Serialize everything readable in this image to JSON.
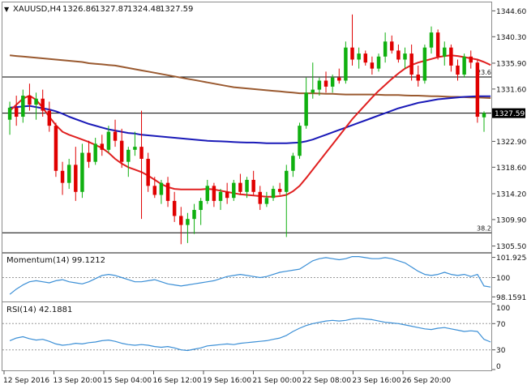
{
  "header": {
    "symbol": "XAUUSD,H4",
    "open": "1326.86",
    "high": "1327.87",
    "low": "1324.48",
    "close": "1327.59"
  },
  "colors": {
    "bull": "#10b010",
    "bear": "#e00000",
    "sma_fast": "#e02020",
    "sma_mid": "#1a1ab8",
    "sma_slow": "#9a5a30",
    "indicator": "#3b8fd6",
    "grid": "#9a9a9a",
    "text": "#111111",
    "price_tag_bg": "#000000",
    "price_tag_fg": "#ffffff"
  },
  "chart_data": [
    {
      "type": "candlestick",
      "title": "XAUUSD,H4",
      "x_labels": [
        "12 Sep 2016",
        "13 Sep 20:00",
        "15 Sep 04:00",
        "16 Sep 12:00",
        "19 Sep 16:00",
        "21 Sep 00:00",
        "22 Sep 08:00",
        "23 Sep 16:00",
        "26 Sep 20:00"
      ],
      "y_ticks": [
        "1344.60",
        "1340.30",
        "1335.90",
        "1331.60",
        "1327.59",
        "1322.90",
        "1318.60",
        "1314.20",
        "1309.90",
        "1305.50"
      ],
      "ylim": [
        1304.5,
        1346.0
      ],
      "current_price": 1327.59,
      "current_price_label": "1327.59",
      "fib_levels": [
        {
          "label": "23.6",
          "value": 1333.6
        },
        {
          "label": "38.2",
          "value": 1307.7
        }
      ],
      "candles": [
        {
          "o": 1326.5,
          "h": 1329.5,
          "l": 1324.0,
          "c": 1328.5
        },
        {
          "o": 1328.5,
          "h": 1330.5,
          "l": 1325.5,
          "c": 1327.0
        },
        {
          "o": 1327.0,
          "h": 1331.5,
          "l": 1326.0,
          "c": 1330.5
        },
        {
          "o": 1330.5,
          "h": 1332.5,
          "l": 1328.0,
          "c": 1329.0
        },
        {
          "o": 1329.0,
          "h": 1331.0,
          "l": 1326.5,
          "c": 1330.0
        },
        {
          "o": 1330.0,
          "h": 1331.5,
          "l": 1327.0,
          "c": 1328.0
        },
        {
          "o": 1328.0,
          "h": 1329.5,
          "l": 1324.5,
          "c": 1325.5
        },
        {
          "o": 1325.5,
          "h": 1326.0,
          "l": 1317.0,
          "c": 1318.0
        },
        {
          "o": 1318.0,
          "h": 1319.5,
          "l": 1314.0,
          "c": 1316.0
        },
        {
          "o": 1316.0,
          "h": 1320.0,
          "l": 1315.0,
          "c": 1319.0
        },
        {
          "o": 1319.0,
          "h": 1322.0,
          "l": 1313.0,
          "c": 1314.5
        },
        {
          "o": 1314.5,
          "h": 1322.5,
          "l": 1313.5,
          "c": 1321.0
        },
        {
          "o": 1321.0,
          "h": 1323.0,
          "l": 1318.5,
          "c": 1319.5
        },
        {
          "o": 1319.5,
          "h": 1323.5,
          "l": 1319.0,
          "c": 1322.5
        },
        {
          "o": 1322.5,
          "h": 1324.0,
          "l": 1320.5,
          "c": 1321.5
        },
        {
          "o": 1321.5,
          "h": 1325.5,
          "l": 1321.0,
          "c": 1324.5
        },
        {
          "o": 1324.5,
          "h": 1326.5,
          "l": 1322.0,
          "c": 1323.0
        },
        {
          "o": 1323.0,
          "h": 1325.0,
          "l": 1318.5,
          "c": 1319.5
        },
        {
          "o": 1319.5,
          "h": 1322.0,
          "l": 1317.0,
          "c": 1321.5
        },
        {
          "o": 1321.5,
          "h": 1324.5,
          "l": 1320.5,
          "c": 1322.0
        },
        {
          "o": 1322.0,
          "h": 1328.0,
          "l": 1310.0,
          "c": 1320.0
        },
        {
          "o": 1320.0,
          "h": 1321.0,
          "l": 1314.5,
          "c": 1315.5
        },
        {
          "o": 1315.5,
          "h": 1317.0,
          "l": 1313.5,
          "c": 1314.0
        },
        {
          "o": 1314.0,
          "h": 1316.5,
          "l": 1312.5,
          "c": 1316.0
        },
        {
          "o": 1316.0,
          "h": 1317.0,
          "l": 1312.0,
          "c": 1313.0
        },
        {
          "o": 1313.0,
          "h": 1314.5,
          "l": 1309.5,
          "c": 1310.5
        },
        {
          "o": 1310.5,
          "h": 1312.0,
          "l": 1305.8,
          "c": 1309.0
        },
        {
          "o": 1309.0,
          "h": 1311.0,
          "l": 1306.0,
          "c": 1310.0
        },
        {
          "o": 1310.0,
          "h": 1312.5,
          "l": 1307.5,
          "c": 1311.5
        },
        {
          "o": 1311.5,
          "h": 1313.5,
          "l": 1309.0,
          "c": 1313.0
        },
        {
          "o": 1313.0,
          "h": 1316.5,
          "l": 1312.5,
          "c": 1315.5
        },
        {
          "o": 1315.5,
          "h": 1316.0,
          "l": 1312.0,
          "c": 1313.0
        },
        {
          "o": 1313.0,
          "h": 1315.0,
          "l": 1311.5,
          "c": 1314.5
        },
        {
          "o": 1314.5,
          "h": 1316.0,
          "l": 1312.5,
          "c": 1313.5
        },
        {
          "o": 1313.5,
          "h": 1316.5,
          "l": 1313.0,
          "c": 1316.0
        },
        {
          "o": 1316.0,
          "h": 1317.5,
          "l": 1314.0,
          "c": 1314.5
        },
        {
          "o": 1314.5,
          "h": 1317.0,
          "l": 1313.5,
          "c": 1316.5
        },
        {
          "o": 1316.5,
          "h": 1318.0,
          "l": 1314.0,
          "c": 1314.5
        },
        {
          "o": 1314.5,
          "h": 1315.5,
          "l": 1311.5,
          "c": 1312.5
        },
        {
          "o": 1312.5,
          "h": 1314.5,
          "l": 1312.0,
          "c": 1313.5
        },
        {
          "o": 1313.5,
          "h": 1315.5,
          "l": 1313.0,
          "c": 1315.0
        },
        {
          "o": 1315.0,
          "h": 1316.0,
          "l": 1314.0,
          "c": 1314.5
        },
        {
          "o": 1314.5,
          "h": 1319.0,
          "l": 1307.0,
          "c": 1318.0
        },
        {
          "o": 1318.0,
          "h": 1321.0,
          "l": 1317.0,
          "c": 1320.5
        },
        {
          "o": 1320.5,
          "h": 1326.0,
          "l": 1320.0,
          "c": 1325.5
        },
        {
          "o": 1325.5,
          "h": 1333.5,
          "l": 1325.0,
          "c": 1331.0
        },
        {
          "o": 1331.0,
          "h": 1336.0,
          "l": 1330.0,
          "c": 1331.5
        },
        {
          "o": 1331.5,
          "h": 1333.5,
          "l": 1330.5,
          "c": 1333.0
        },
        {
          "o": 1333.0,
          "h": 1334.5,
          "l": 1331.0,
          "c": 1332.0
        },
        {
          "o": 1332.0,
          "h": 1334.0,
          "l": 1331.0,
          "c": 1333.5
        },
        {
          "o": 1333.5,
          "h": 1335.0,
          "l": 1332.5,
          "c": 1333.0
        },
        {
          "o": 1333.0,
          "h": 1339.5,
          "l": 1332.5,
          "c": 1338.5
        },
        {
          "o": 1338.5,
          "h": 1344.0,
          "l": 1335.5,
          "c": 1336.5
        },
        {
          "o": 1336.5,
          "h": 1338.5,
          "l": 1335.0,
          "c": 1337.5
        },
        {
          "o": 1337.5,
          "h": 1338.0,
          "l": 1335.5,
          "c": 1336.0
        },
        {
          "o": 1336.0,
          "h": 1337.0,
          "l": 1334.0,
          "c": 1335.0
        },
        {
          "o": 1335.0,
          "h": 1337.5,
          "l": 1334.5,
          "c": 1337.0
        },
        {
          "o": 1337.0,
          "h": 1341.0,
          "l": 1336.0,
          "c": 1339.5
        },
        {
          "o": 1339.5,
          "h": 1340.5,
          "l": 1337.5,
          "c": 1338.0
        },
        {
          "o": 1338.0,
          "h": 1339.0,
          "l": 1336.0,
          "c": 1336.5
        },
        {
          "o": 1336.5,
          "h": 1338.5,
          "l": 1335.0,
          "c": 1337.5
        },
        {
          "o": 1337.5,
          "h": 1339.0,
          "l": 1333.0,
          "c": 1334.0
        },
        {
          "o": 1334.0,
          "h": 1335.5,
          "l": 1332.0,
          "c": 1333.0
        },
        {
          "o": 1333.0,
          "h": 1339.0,
          "l": 1332.5,
          "c": 1338.5
        },
        {
          "o": 1338.5,
          "h": 1342.0,
          "l": 1337.5,
          "c": 1341.0
        },
        {
          "o": 1341.0,
          "h": 1341.5,
          "l": 1336.5,
          "c": 1337.0
        },
        {
          "o": 1337.0,
          "h": 1339.5,
          "l": 1335.5,
          "c": 1338.5
        },
        {
          "o": 1338.5,
          "h": 1339.0,
          "l": 1334.5,
          "c": 1335.5
        },
        {
          "o": 1335.5,
          "h": 1336.5,
          "l": 1333.0,
          "c": 1334.0
        },
        {
          "o": 1334.0,
          "h": 1337.5,
          "l": 1333.5,
          "c": 1337.0
        },
        {
          "o": 1337.0,
          "h": 1338.0,
          "l": 1335.0,
          "c": 1336.0
        },
        {
          "o": 1336.0,
          "h": 1336.5,
          "l": 1326.0,
          "c": 1327.0
        },
        {
          "o": 1326.9,
          "h": 1327.9,
          "l": 1324.5,
          "c": 1327.6
        }
      ],
      "sma_fast": [
        1328.0,
        1329.0,
        1330.0,
        1330.5,
        1329.8,
        1328.5,
        1327.0,
        1325.6,
        1324.5,
        1324.0,
        1323.6,
        1323.2,
        1322.8,
        1322.3,
        1321.8,
        1321.0,
        1320.0,
        1319.2,
        1318.6,
        1318.2,
        1317.8,
        1317.2,
        1316.5,
        1315.8,
        1315.3,
        1315.0,
        1314.9,
        1314.9,
        1314.9,
        1314.9,
        1315.0,
        1314.9,
        1314.7,
        1314.5,
        1314.3,
        1314.1,
        1314.0,
        1313.9,
        1313.8,
        1313.7,
        1313.7,
        1313.8,
        1314.0,
        1314.6,
        1315.5,
        1316.8,
        1318.2,
        1319.6,
        1321.0,
        1322.4,
        1323.8,
        1325.2,
        1326.6,
        1327.8,
        1329.0,
        1330.2,
        1331.3,
        1332.3,
        1333.3,
        1334.2,
        1335.0,
        1335.6,
        1336.0,
        1336.3,
        1336.6,
        1336.9,
        1337.1,
        1337.2,
        1337.1,
        1336.9,
        1336.7,
        1336.5,
        1336.1,
        1335.6
      ],
      "sma_mid": [
        1328.5,
        1328.6,
        1328.7,
        1328.8,
        1328.6,
        1328.4,
        1328.2,
        1327.9,
        1327.5,
        1327.0,
        1326.6,
        1326.2,
        1325.8,
        1325.5,
        1325.2,
        1324.9,
        1324.7,
        1324.5,
        1324.3,
        1324.2,
        1324.0,
        1323.9,
        1323.8,
        1323.7,
        1323.6,
        1323.5,
        1323.4,
        1323.3,
        1323.2,
        1323.1,
        1323.0,
        1322.95,
        1322.9,
        1322.85,
        1322.8,
        1322.75,
        1322.7,
        1322.7,
        1322.65,
        1322.6,
        1322.6,
        1322.6,
        1322.6,
        1322.65,
        1322.7,
        1322.9,
        1323.2,
        1323.6,
        1324.0,
        1324.4,
        1324.8,
        1325.2,
        1325.6,
        1326.0,
        1326.4,
        1326.8,
        1327.2,
        1327.6,
        1328.0,
        1328.4,
        1328.7,
        1329.0,
        1329.3,
        1329.5,
        1329.7,
        1329.9,
        1330.0,
        1330.1,
        1330.2,
        1330.3,
        1330.35,
        1330.4,
        1330.4,
        1330.4
      ],
      "sma_slow": [
        1337.2,
        1337.1,
        1337.0,
        1336.9,
        1336.8,
        1336.7,
        1336.6,
        1336.5,
        1336.4,
        1336.3,
        1336.2,
        1336.1,
        1335.9,
        1335.8,
        1335.7,
        1335.6,
        1335.5,
        1335.3,
        1335.1,
        1334.9,
        1334.7,
        1334.5,
        1334.3,
        1334.1,
        1333.9,
        1333.7,
        1333.5,
        1333.3,
        1333.1,
        1332.9,
        1332.7,
        1332.5,
        1332.3,
        1332.1,
        1331.9,
        1331.8,
        1331.7,
        1331.6,
        1331.5,
        1331.4,
        1331.3,
        1331.2,
        1331.1,
        1331.0,
        1330.9,
        1330.9,
        1330.9,
        1330.85,
        1330.8,
        1330.8,
        1330.75,
        1330.7,
        1330.7,
        1330.7,
        1330.7,
        1330.7,
        1330.65,
        1330.6,
        1330.6,
        1330.6,
        1330.55,
        1330.5,
        1330.5,
        1330.45,
        1330.4,
        1330.4,
        1330.35,
        1330.3,
        1330.3,
        1330.25,
        1330.2,
        1330.2,
        1330.15,
        1330.1
      ]
    },
    {
      "type": "line",
      "title": "Momentum(14) 99.1212",
      "y_ticks": [
        "101.9254",
        "100",
        "98.1591"
      ],
      "ylim": [
        97.8,
        102.2
      ],
      "reference_level": 100,
      "values": [
        98.4,
        98.9,
        99.3,
        99.6,
        99.7,
        99.6,
        99.5,
        99.7,
        99.8,
        99.6,
        99.5,
        99.4,
        99.6,
        99.9,
        100.2,
        100.3,
        100.2,
        100.0,
        99.8,
        99.6,
        99.6,
        99.7,
        99.8,
        99.6,
        99.4,
        99.3,
        99.2,
        99.3,
        99.4,
        99.5,
        99.6,
        99.7,
        99.9,
        100.1,
        100.2,
        100.3,
        100.2,
        100.1,
        100.0,
        100.1,
        100.3,
        100.5,
        100.6,
        100.7,
        100.8,
        101.2,
        101.6,
        101.8,
        101.9,
        101.8,
        101.7,
        101.8,
        102.0,
        102.0,
        101.9,
        101.8,
        101.8,
        101.9,
        101.8,
        101.6,
        101.4,
        101.0,
        100.6,
        100.3,
        100.2,
        100.3,
        100.5,
        100.3,
        100.2,
        100.3,
        100.1,
        100.3,
        99.2,
        99.1
      ]
    },
    {
      "type": "line",
      "title": "RSI(14) 42.1881",
      "y_ticks": [
        "100",
        "70",
        "30",
        "0"
      ],
      "ylim": [
        0,
        100
      ],
      "reference_levels": [
        70,
        30
      ],
      "values": [
        44,
        48,
        50,
        47,
        45,
        46,
        43,
        39,
        37,
        38,
        40,
        39,
        41,
        42,
        44,
        45,
        43,
        40,
        38,
        37,
        38,
        37,
        35,
        34,
        35,
        33,
        30,
        29,
        31,
        33,
        36,
        37,
        38,
        39,
        38,
        40,
        41,
        42,
        43,
        44,
        46,
        48,
        52,
        58,
        63,
        67,
        70,
        72,
        74,
        75,
        74,
        75,
        77,
        78,
        77,
        76,
        74,
        72,
        71,
        70,
        68,
        66,
        64,
        62,
        61,
        63,
        64,
        62,
        60,
        58,
        59,
        58,
        46,
        42
      ]
    }
  ]
}
